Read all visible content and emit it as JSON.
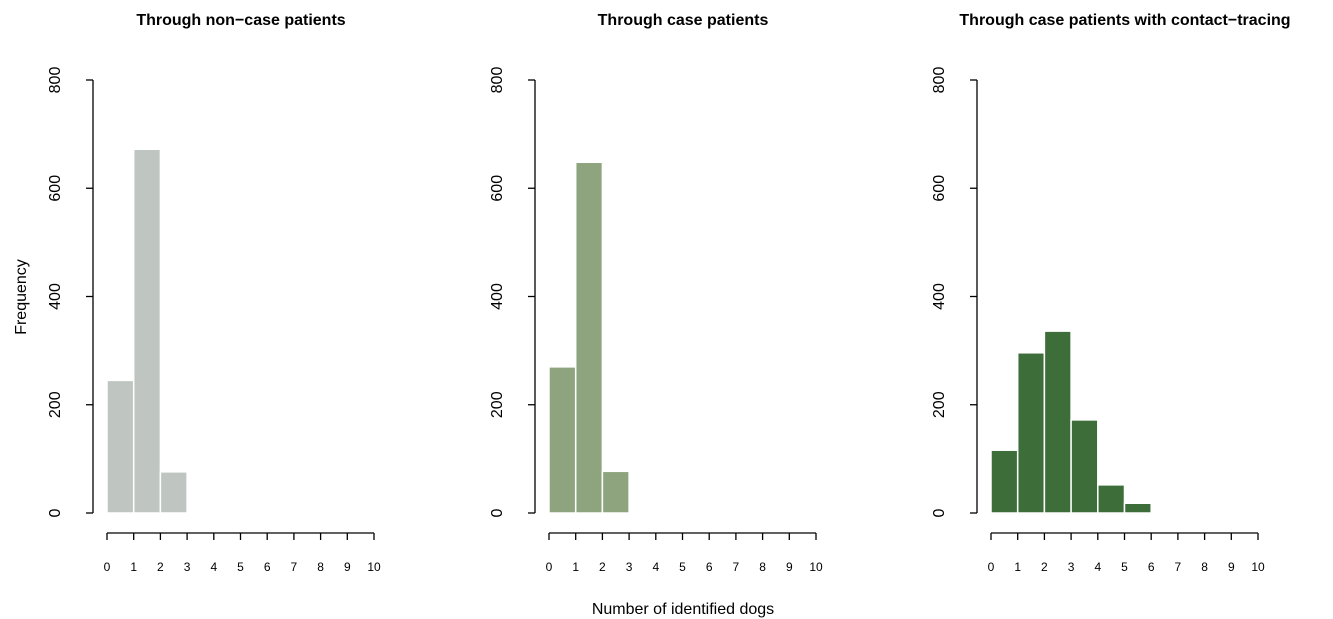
{
  "figure": {
    "xlabel": "Number of identified dogs",
    "ylabel": "Frequency"
  },
  "chart_data": [
    {
      "type": "bar",
      "title": "Through non−case patients",
      "bin_edges": [
        0,
        1,
        2,
        3,
        4,
        5,
        6,
        7,
        8,
        9,
        10
      ],
      "values": [
        245,
        672,
        76,
        2,
        0,
        0,
        0,
        0,
        0,
        0
      ],
      "xlim": [
        0,
        10
      ],
      "ylim": [
        0,
        800
      ],
      "x_ticks": [
        0,
        1,
        2,
        3,
        4,
        5,
        6,
        7,
        8,
        9,
        10
      ],
      "x_tick_labels": [
        "0",
        "1",
        "2",
        "3",
        "4",
        "5",
        "6",
        "7",
        "8",
        "9",
        "10"
      ],
      "y_ticks": [
        0,
        200,
        400,
        600,
        800
      ],
      "y_tick_labels": [
        "0",
        "200",
        "400",
        "600",
        "800"
      ],
      "color": "#bfc5c0",
      "ylabel": "Frequency",
      "xlabel": "",
      "grid": false
    },
    {
      "type": "bar",
      "title": "Through case patients",
      "bin_edges": [
        0,
        1,
        2,
        3,
        4,
        5,
        6,
        7,
        8,
        9,
        10
      ],
      "values": [
        270,
        648,
        77,
        0,
        0,
        0,
        0,
        0,
        0,
        0
      ],
      "xlim": [
        0,
        10
      ],
      "ylim": [
        0,
        800
      ],
      "x_ticks": [
        0,
        1,
        2,
        3,
        4,
        5,
        6,
        7,
        8,
        9,
        10
      ],
      "x_tick_labels": [
        "0",
        "1",
        "2",
        "3",
        "4",
        "5",
        "6",
        "7",
        "8",
        "9",
        "10"
      ],
      "y_ticks": [
        0,
        200,
        400,
        600,
        800
      ],
      "y_tick_labels": [
        "0",
        "200",
        "400",
        "600",
        "800"
      ],
      "color": "#8da47e",
      "ylabel": "",
      "xlabel": "Number of identified dogs",
      "grid": false
    },
    {
      "type": "bar",
      "title": "Through case patients with contact−tracing",
      "bin_edges": [
        0,
        1,
        2,
        3,
        4,
        5,
        6,
        7,
        8,
        9,
        10
      ],
      "values": [
        116,
        296,
        336,
        172,
        52,
        18,
        0,
        0,
        0,
        0
      ],
      "xlim": [
        0,
        10
      ],
      "ylim": [
        0,
        800
      ],
      "x_ticks": [
        0,
        1,
        2,
        3,
        4,
        5,
        6,
        7,
        8,
        9,
        10
      ],
      "x_tick_labels": [
        "0",
        "1",
        "2",
        "3",
        "4",
        "5",
        "6",
        "7",
        "8",
        "9",
        "10"
      ],
      "y_ticks": [
        0,
        200,
        400,
        600,
        800
      ],
      "y_tick_labels": [
        "0",
        "200",
        "400",
        "600",
        "800"
      ],
      "color": "#3d6e39",
      "ylabel": "",
      "xlabel": "",
      "grid": false
    }
  ]
}
